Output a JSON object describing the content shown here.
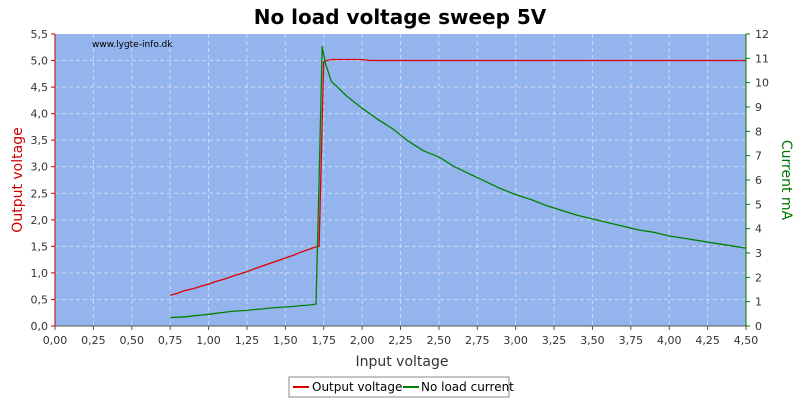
{
  "chart_data": {
    "type": "line",
    "title": "No load voltage sweep 5V",
    "watermark": "www.lygte-info.dk",
    "xlabel": "Input voltage",
    "ylabel_left": "Output voltage",
    "ylabel_right": "Current mA",
    "xlim": [
      0,
      4.5
    ],
    "ylim_left": [
      0,
      5.5
    ],
    "ylim_right": [
      0,
      12
    ],
    "x_ticks": [
      "0,00",
      "0,25",
      "0,50",
      "0,75",
      "1,00",
      "1,25",
      "1,50",
      "1,75",
      "2,00",
      "2,25",
      "2,50",
      "2,75",
      "3,00",
      "3,25",
      "3,50",
      "3,75",
      "4,00",
      "4,25",
      "4,50"
    ],
    "y_left_ticks": [
      "0,0",
      "0,5",
      "1,0",
      "1,5",
      "2,0",
      "2,5",
      "3,0",
      "3,5",
      "4,0",
      "4,5",
      "5,0",
      "5,5"
    ],
    "y_right_ticks": [
      "0",
      "1",
      "2",
      "3",
      "4",
      "5",
      "6",
      "7",
      "8",
      "9",
      "10",
      "11",
      "12"
    ],
    "grid": true,
    "legend_position": "bottom-center",
    "colors": {
      "plot_background": "#94b4ee",
      "grid": "#c9d8f6",
      "output_voltage": "#dd0000",
      "no_load_current": "#008000",
      "left_axis": "#cc0000",
      "right_axis": "#007700"
    },
    "series": [
      {
        "name": "Output voltage",
        "axis": "left",
        "x": [
          0.75,
          0.8,
          0.85,
          0.9,
          0.95,
          1.0,
          1.05,
          1.1,
          1.15,
          1.2,
          1.25,
          1.3,
          1.35,
          1.4,
          1.45,
          1.5,
          1.55,
          1.6,
          1.65,
          1.7,
          1.72,
          1.75,
          1.77,
          1.8,
          1.85,
          1.9,
          1.95,
          2.0,
          2.05,
          2.1,
          2.5,
          3.0,
          3.5,
          4.0,
          4.5
        ],
        "values": [
          0.58,
          0.62,
          0.67,
          0.7,
          0.75,
          0.79,
          0.84,
          0.88,
          0.93,
          0.98,
          1.02,
          1.08,
          1.13,
          1.18,
          1.23,
          1.28,
          1.33,
          1.39,
          1.44,
          1.49,
          1.5,
          4.98,
          5.0,
          5.02,
          5.02,
          5.02,
          5.02,
          5.02,
          5.0,
          5.0,
          5.0,
          5.0,
          5.0,
          5.0,
          5.0
        ]
      },
      {
        "name": "No load current",
        "axis": "right",
        "x": [
          0.75,
          0.8,
          0.85,
          0.9,
          0.95,
          1.0,
          1.05,
          1.1,
          1.15,
          1.2,
          1.25,
          1.3,
          1.35,
          1.4,
          1.45,
          1.5,
          1.55,
          1.6,
          1.65,
          1.7,
          1.72,
          1.74,
          1.76,
          1.8,
          1.9,
          2.0,
          2.1,
          2.2,
          2.3,
          2.4,
          2.5,
          2.6,
          2.7,
          2.8,
          2.9,
          3.0,
          3.1,
          3.2,
          3.3,
          3.4,
          3.5,
          3.6,
          3.7,
          3.8,
          3.9,
          4.0,
          4.1,
          4.2,
          4.3,
          4.4,
          4.5
        ],
        "values": [
          0.35,
          0.36,
          0.38,
          0.42,
          0.45,
          0.48,
          0.52,
          0.56,
          0.6,
          0.62,
          0.64,
          0.68,
          0.7,
          0.74,
          0.76,
          0.78,
          0.8,
          0.84,
          0.86,
          0.9,
          6.0,
          11.5,
          10.8,
          10.05,
          9.45,
          8.95,
          8.5,
          8.1,
          7.6,
          7.2,
          6.95,
          6.55,
          6.25,
          5.95,
          5.65,
          5.4,
          5.2,
          4.95,
          4.75,
          4.55,
          4.4,
          4.25,
          4.1,
          3.95,
          3.85,
          3.7,
          3.6,
          3.5,
          3.4,
          3.3,
          3.2
        ]
      }
    ]
  }
}
